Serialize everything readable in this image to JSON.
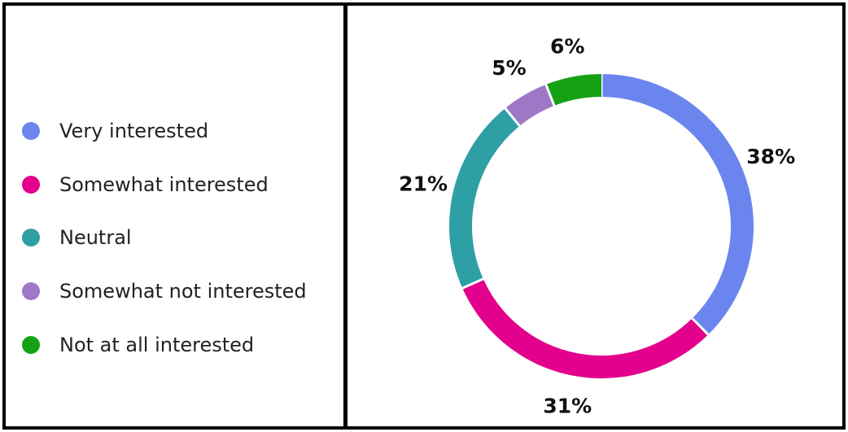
{
  "chart_data": {
    "type": "pie",
    "categories": [
      "Very interested",
      "Somewhat interested",
      "Neutral",
      "Somewhat not interested",
      "Not at all interested"
    ],
    "values": [
      38,
      31,
      21,
      5,
      6
    ],
    "value_labels": [
      "38%",
      "31%",
      "21%",
      "5%",
      "6%"
    ],
    "colors": [
      "#6b85ee",
      "#e2008c",
      "#2d9fa5",
      "#9e78c6",
      "#16a016"
    ],
    "donut": true,
    "legend_position": "left"
  }
}
